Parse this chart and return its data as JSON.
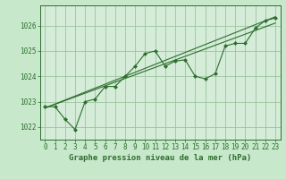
{
  "title": "Graphe pression niveau de la mer (hPa)",
  "background_color": "#c8e8cc",
  "plot_bg_color": "#d4ecd8",
  "grid_color": "#9cc4a0",
  "line_color": "#2d6e2d",
  "xlim": [
    -0.5,
    23.5
  ],
  "ylim": [
    1021.5,
    1026.8
  ],
  "yticks": [
    1022,
    1023,
    1024,
    1025,
    1026
  ],
  "xticks": [
    0,
    1,
    2,
    3,
    4,
    5,
    6,
    7,
    8,
    9,
    10,
    11,
    12,
    13,
    14,
    15,
    16,
    17,
    18,
    19,
    20,
    21,
    22,
    23
  ],
  "series1": [
    1022.8,
    1022.8,
    1022.3,
    1021.9,
    1023.0,
    1023.1,
    1023.6,
    1023.6,
    1024.0,
    1024.4,
    1024.9,
    1025.0,
    1024.4,
    1024.6,
    1024.65,
    1024.0,
    1023.9,
    1024.1,
    1025.2,
    1025.3,
    1025.3,
    1025.9,
    1026.2,
    1026.3
  ],
  "trend1_x": [
    0,
    23
  ],
  "trend1_y": [
    1022.75,
    1026.1
  ],
  "trend2_x": [
    0,
    23
  ],
  "trend2_y": [
    1022.75,
    1026.35
  ],
  "xlabel_fontsize": 6.5,
  "tick_fontsize": 5.5,
  "marker_size": 2.5,
  "title_color": "#1a4e1a"
}
